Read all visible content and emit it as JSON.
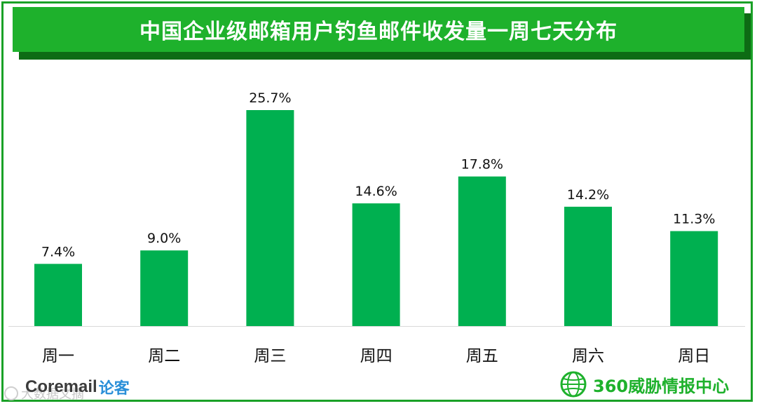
{
  "title": "中国企业级邮箱用户钓鱼邮件收发量一周七天分布",
  "chart_data": {
    "type": "bar",
    "title": "中国企业级邮箱用户钓鱼邮件收发量一周七天分布",
    "categories": [
      "周一",
      "周二",
      "周三",
      "周四",
      "周五",
      "周六",
      "周日"
    ],
    "values": [
      7.4,
      9.0,
      25.7,
      14.6,
      17.8,
      14.2,
      11.3
    ],
    "value_labels": [
      "7.4%",
      "9.0%",
      "25.7%",
      "14.6%",
      "17.8%",
      "14.2%",
      "11.3%"
    ],
    "xlabel": "",
    "ylabel": "",
    "ylim": [
      0,
      25.7
    ],
    "grid": false,
    "bar_color": "#00b050"
  },
  "footer": {
    "left_brand": "Coremail",
    "left_brand_cn": "论客",
    "watermark": "大数据文摘",
    "right_brand": "360威胁情报中心"
  },
  "colors": {
    "title_bar": "#1eb12c",
    "title_shadow": "#0d6b14",
    "frame": "#1aa127",
    "bar": "#00b050"
  }
}
